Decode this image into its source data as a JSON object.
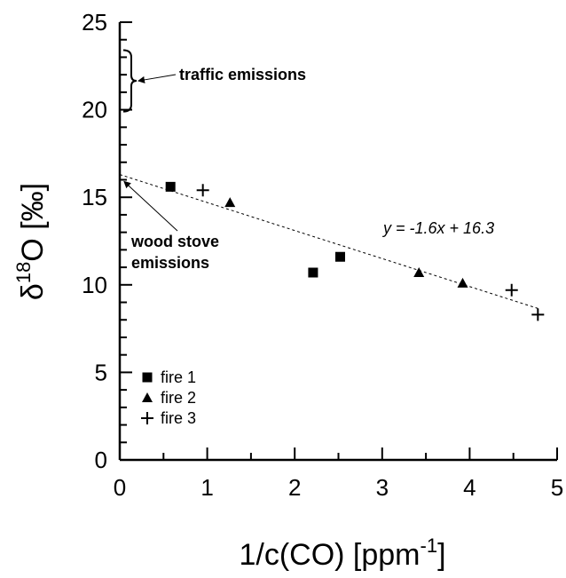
{
  "chart_data": {
    "type": "scatter",
    "title": "",
    "xlabel": {
      "base": "1/c(CO) [ppm",
      "sup": "-1",
      "end": "]"
    },
    "ylabel": {
      "pre": "δ",
      "sup": "18",
      "post": "O [‰]"
    },
    "xlim": [
      0,
      5
    ],
    "ylim": [
      0,
      25
    ],
    "xticks": [
      "0",
      "1",
      "2",
      "3",
      "4",
      "5"
    ],
    "yticks": [
      "0",
      "5",
      "10",
      "15",
      "20",
      "25"
    ],
    "grid": false,
    "legend_position": "bottom-left",
    "series": [
      {
        "name": "fire 1",
        "marker": "square",
        "points": [
          [
            0.58,
            15.6
          ],
          [
            2.21,
            10.7
          ],
          [
            2.52,
            11.6
          ]
        ]
      },
      {
        "name": "fire 2",
        "marker": "triangle",
        "points": [
          [
            1.26,
            14.7
          ],
          [
            3.42,
            10.7
          ],
          [
            3.92,
            10.1
          ]
        ]
      },
      {
        "name": "fire 3",
        "marker": "plus",
        "points": [
          [
            0.95,
            15.4
          ],
          [
            4.48,
            9.7
          ],
          [
            4.78,
            8.3
          ]
        ]
      }
    ],
    "fit_line": {
      "slope": -1.6,
      "intercept": 16.3,
      "x_range": [
        0,
        4.78
      ],
      "label": "y = -1.6x + 16.3"
    },
    "annotations": {
      "traffic": {
        "text": "traffic emissions",
        "y_range": [
          19.9,
          23.4
        ]
      },
      "wood_stove": {
        "line1": "wood stove",
        "line2": "emissions",
        "target": [
          0.03,
          16.0
        ]
      }
    }
  }
}
